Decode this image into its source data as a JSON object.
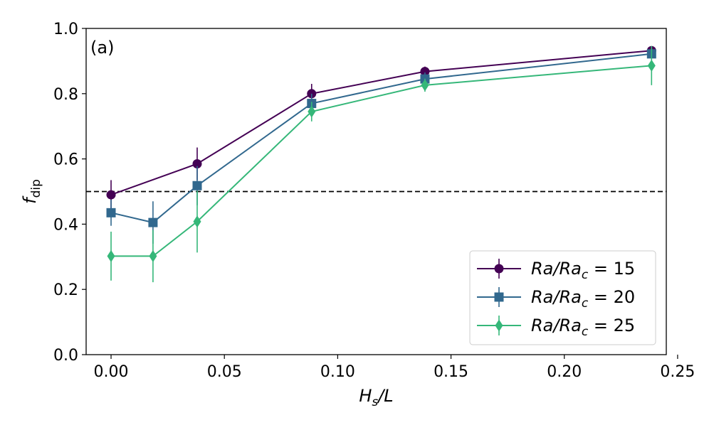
{
  "chart_data": {
    "type": "line",
    "panel_label": "(a)",
    "xlabel": {
      "main": "H",
      "sub": "s",
      "rest": "/L"
    },
    "ylabel": {
      "main": "f",
      "sub": "dip"
    },
    "xlim": [
      -0.011,
      0.245
    ],
    "ylim": [
      0.0,
      1.0
    ],
    "x_ticks": [
      0.0,
      0.05,
      0.1,
      0.15,
      0.2,
      0.25
    ],
    "x_tick_labels": [
      "0.00",
      "0.05",
      "0.10",
      "0.15",
      "0.20",
      "0.25"
    ],
    "y_ticks": [
      0.0,
      0.2,
      0.4,
      0.6,
      0.8,
      1.0
    ],
    "y_tick_labels": [
      "0.0",
      "0.2",
      "0.4",
      "0.6",
      "0.8",
      "1.0"
    ],
    "reference_line": {
      "y": 0.5,
      "style": "dashed",
      "color": "#000000"
    },
    "legend_position": "lower-right",
    "series": [
      {
        "name": "Ra/Ra_c = 15",
        "legend": {
          "a": "Ra",
          "b": "Ra",
          "c": "c",
          "eq": " = 15"
        },
        "marker": "circle",
        "color": "#440154",
        "x": [
          0.0,
          0.0185,
          0.038,
          0.0885,
          0.1385,
          0.2385
        ],
        "y": [
          0.49,
          null,
          0.585,
          0.8,
          0.868,
          0.932
        ],
        "err": [
          0.045,
          null,
          0.05,
          0.03,
          0.015,
          0.01
        ]
      },
      {
        "name": "Ra/Ra_c = 20",
        "legend": {
          "a": "Ra",
          "b": "Ra",
          "c": "c",
          "eq": " = 20"
        },
        "marker": "square",
        "color": "#31688e",
        "x": [
          0.0,
          0.0185,
          0.038,
          0.0885,
          0.1385,
          0.2385
        ],
        "y": [
          0.435,
          0.405,
          0.518,
          0.77,
          0.845,
          0.922
        ],
        "err": [
          0.04,
          0.065,
          0.06,
          0.03,
          0.02,
          0.01
        ]
      },
      {
        "name": "Ra/Ra_c = 25",
        "legend": {
          "a": "Ra",
          "b": "Ra",
          "c": "c",
          "eq": " = 25"
        },
        "marker": "diamond",
        "color": "#35b779",
        "x": [
          0.0,
          0.0185,
          0.038,
          0.0885,
          0.1385,
          0.2385
        ],
        "y": [
          0.302,
          0.302,
          0.408,
          0.745,
          0.826,
          0.886
        ],
        "err": [
          0.075,
          0.08,
          0.095,
          0.03,
          0.02,
          0.06
        ]
      }
    ]
  }
}
